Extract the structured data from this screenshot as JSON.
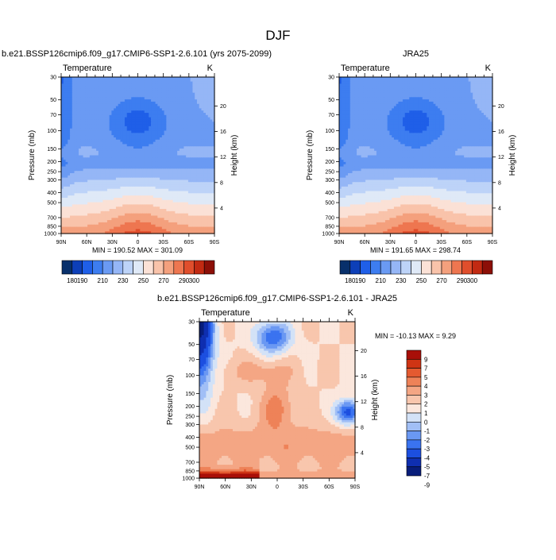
{
  "page_title": "DJF",
  "colors": {
    "abs_scale": [
      "#08306b",
      "#0d3fb8",
      "#1f5fe8",
      "#3d7df0",
      "#6a9af3",
      "#95b6f6",
      "#bdd3f8",
      "#dfe9f7",
      "#fbe1d6",
      "#f9c3aa",
      "#f4a07d",
      "#ee7650",
      "#e04e2c",
      "#c22a12",
      "#8c0f07"
    ],
    "diff_scale": [
      "#081d7a",
      "#0f2fb0",
      "#1c4fe0",
      "#3a73f0",
      "#6a98f3",
      "#a1bff6",
      "#d3e2f7",
      "#fbe7dd",
      "#f8c6ad",
      "#f4a684",
      "#ee8258",
      "#e45a30",
      "#cf3414",
      "#a80f08"
    ]
  },
  "chart_data": [
    {
      "id": "model",
      "type": "heatmap",
      "title": "b.e21.BSSP126cmip6.f09_g17.CMIP6-SSP1-2.6.101 (yrs 2075-2099)",
      "left_label": "Temperature",
      "right_label": "K",
      "xlabel": "",
      "ylabel": "Pressure (mb)",
      "y2label": "Height (km)",
      "x_ticks": [
        "90N",
        "60N",
        "30N",
        "0",
        "30S",
        "60S",
        "90S"
      ],
      "y_ticks": [
        "30",
        "50",
        "70",
        "100",
        "150",
        "200",
        "250",
        "300",
        "400",
        "500",
        "700",
        "850",
        "1000"
      ],
      "y2_ticks": [
        "20",
        "16",
        "12",
        "8",
        "4"
      ],
      "stats": "MIN = 190.52   MAX = 301.09",
      "colorbar_labels": [
        "180",
        "190",
        "210",
        "230",
        "250",
        "270",
        "290",
        "300"
      ]
    },
    {
      "id": "obs",
      "type": "heatmap",
      "title": "JRA25",
      "left_label": "Temperature",
      "right_label": "K",
      "xlabel": "",
      "ylabel": "Pressure (mb)",
      "y2label": "Height (km)",
      "x_ticks": [
        "90N",
        "60N",
        "30N",
        "0",
        "30S",
        "60S",
        "90S"
      ],
      "y_ticks": [
        "30",
        "50",
        "70",
        "100",
        "150",
        "200",
        "250",
        "300",
        "400",
        "500",
        "700",
        "850",
        "1000"
      ],
      "y2_ticks": [
        "20",
        "16",
        "12",
        "8",
        "4"
      ],
      "stats": "MIN = 191.65   MAX = 298.74",
      "colorbar_labels": [
        "180",
        "190",
        "210",
        "230",
        "250",
        "270",
        "290",
        "300"
      ]
    },
    {
      "id": "diff",
      "type": "heatmap",
      "title": "b.e21.BSSP126cmip6.f09_g17.CMIP6-SSP1-2.6.101 - JRA25",
      "left_label": "Temperature",
      "right_label": "K",
      "xlabel": "",
      "ylabel": "Pressure (mb)",
      "y2label": "Height (km)",
      "x_ticks": [
        "90N",
        "60N",
        "30N",
        "0",
        "30S",
        "60S",
        "90S"
      ],
      "y_ticks": [
        "30",
        "50",
        "70",
        "100",
        "150",
        "200",
        "250",
        "300",
        "400",
        "500",
        "700",
        "850",
        "1000"
      ],
      "y2_ticks": [
        "20",
        "16",
        "12",
        "8",
        "4"
      ],
      "stats": "MIN = -10.13  MAX =   9.29",
      "colorbar_labels": [
        "9",
        "7",
        "5",
        "4",
        "3",
        "2",
        "1",
        "0",
        "-1",
        "-2",
        "-3",
        "-4",
        "-5",
        "-7",
        "-9"
      ]
    }
  ]
}
